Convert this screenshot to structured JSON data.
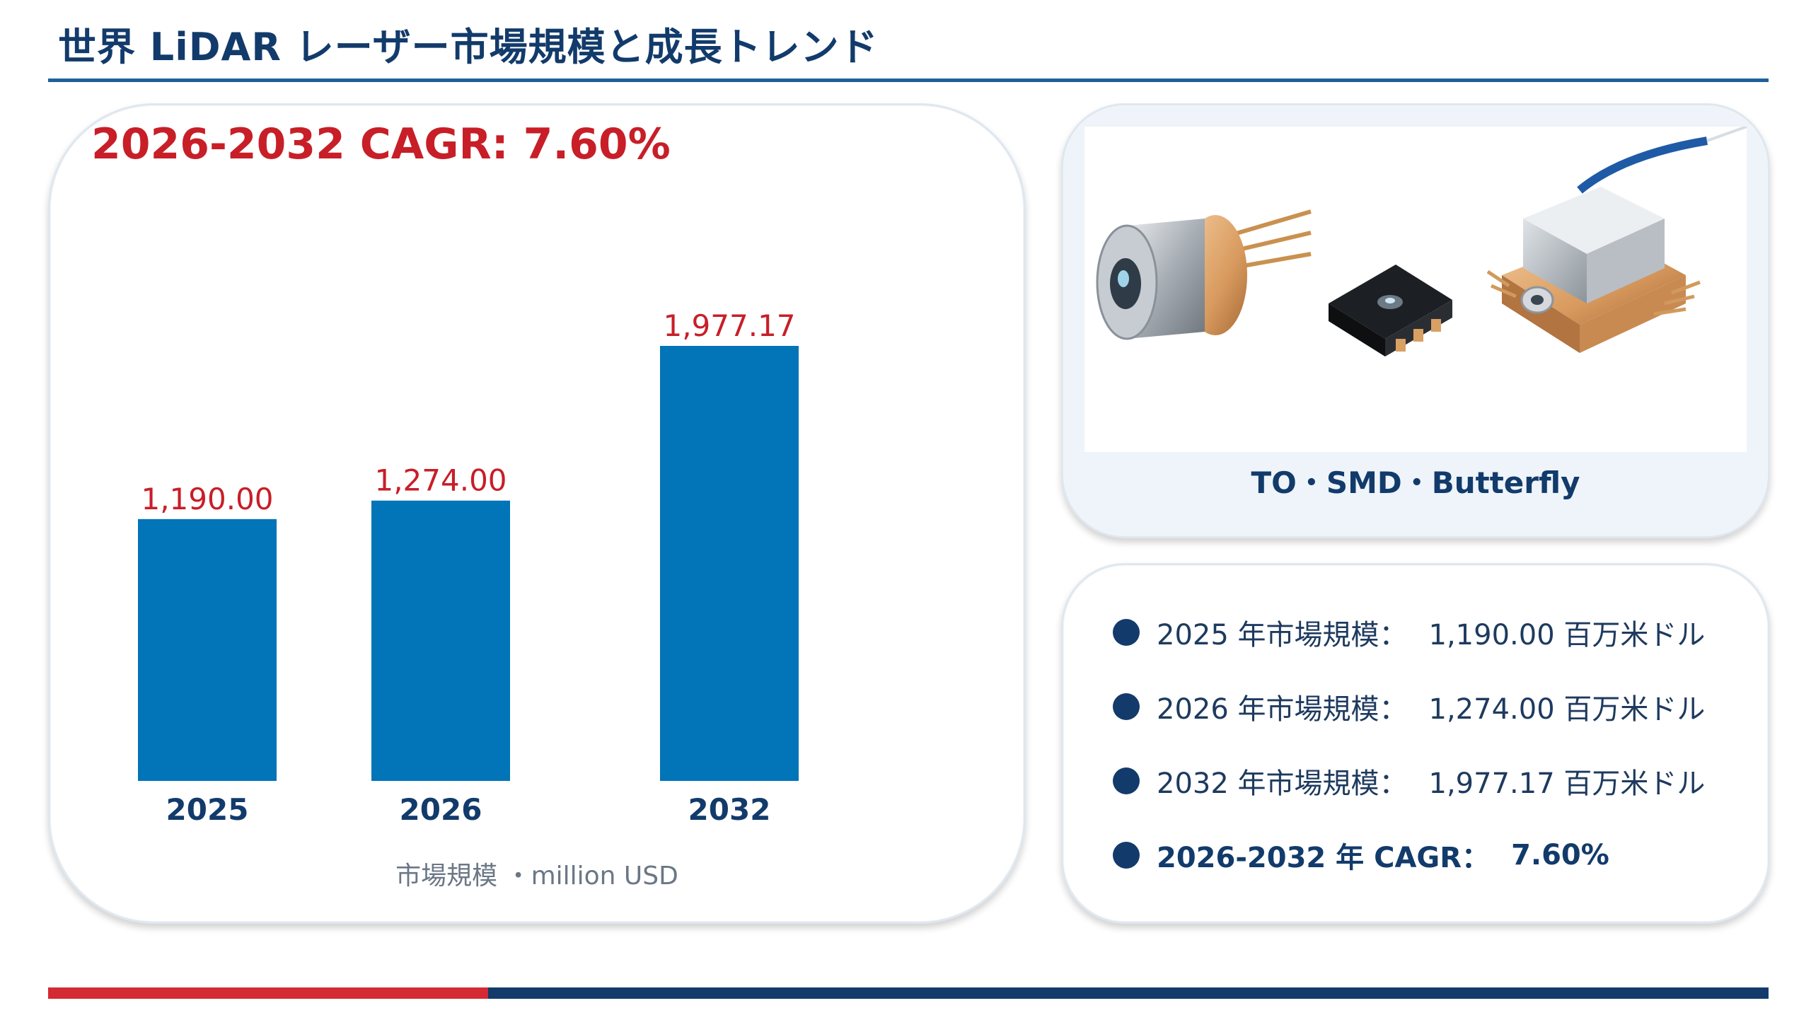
{
  "title": "世界 LiDAR レーザー市場規模と成長トレンド",
  "chart_card": {
    "headline": "2026-2032 CAGR: 7.60%",
    "caption": "市場規模 ・million USD"
  },
  "image_card": {
    "caption": "TO・SMD・Butterfly"
  },
  "stats": [
    {
      "label": "2025 年市場規模：",
      "value": "1,190.00 百万米ドル",
      "bold": false
    },
    {
      "label": "2026 年市場規模：",
      "value": "1,274.00 百万米ドル",
      "bold": false
    },
    {
      "label": "2032 年市場規模：",
      "value": "1,977.17 百万米ドル",
      "bold": false
    },
    {
      "label": "2026-2032 年 CAGR：",
      "value": "7.60%",
      "bold": true
    }
  ],
  "colors": {
    "bar": "#0274b8",
    "value_label": "#c81e28",
    "title": "#123b6b",
    "accent_red": "#d42a33",
    "accent_navy": "#123b6b"
  },
  "chart_data": {
    "type": "bar",
    "categories": [
      "2025",
      "2026",
      "2032"
    ],
    "values": [
      1190.0,
      1274.0,
      1977.17
    ],
    "value_labels": [
      "1,190.00",
      "1,274.00",
      "1,977.17"
    ],
    "title": "",
    "xlabel": "市場規模 ・million USD",
    "ylabel": "",
    "ylim": [
      0,
      1977.17
    ],
    "grid": false,
    "legend": "none"
  }
}
